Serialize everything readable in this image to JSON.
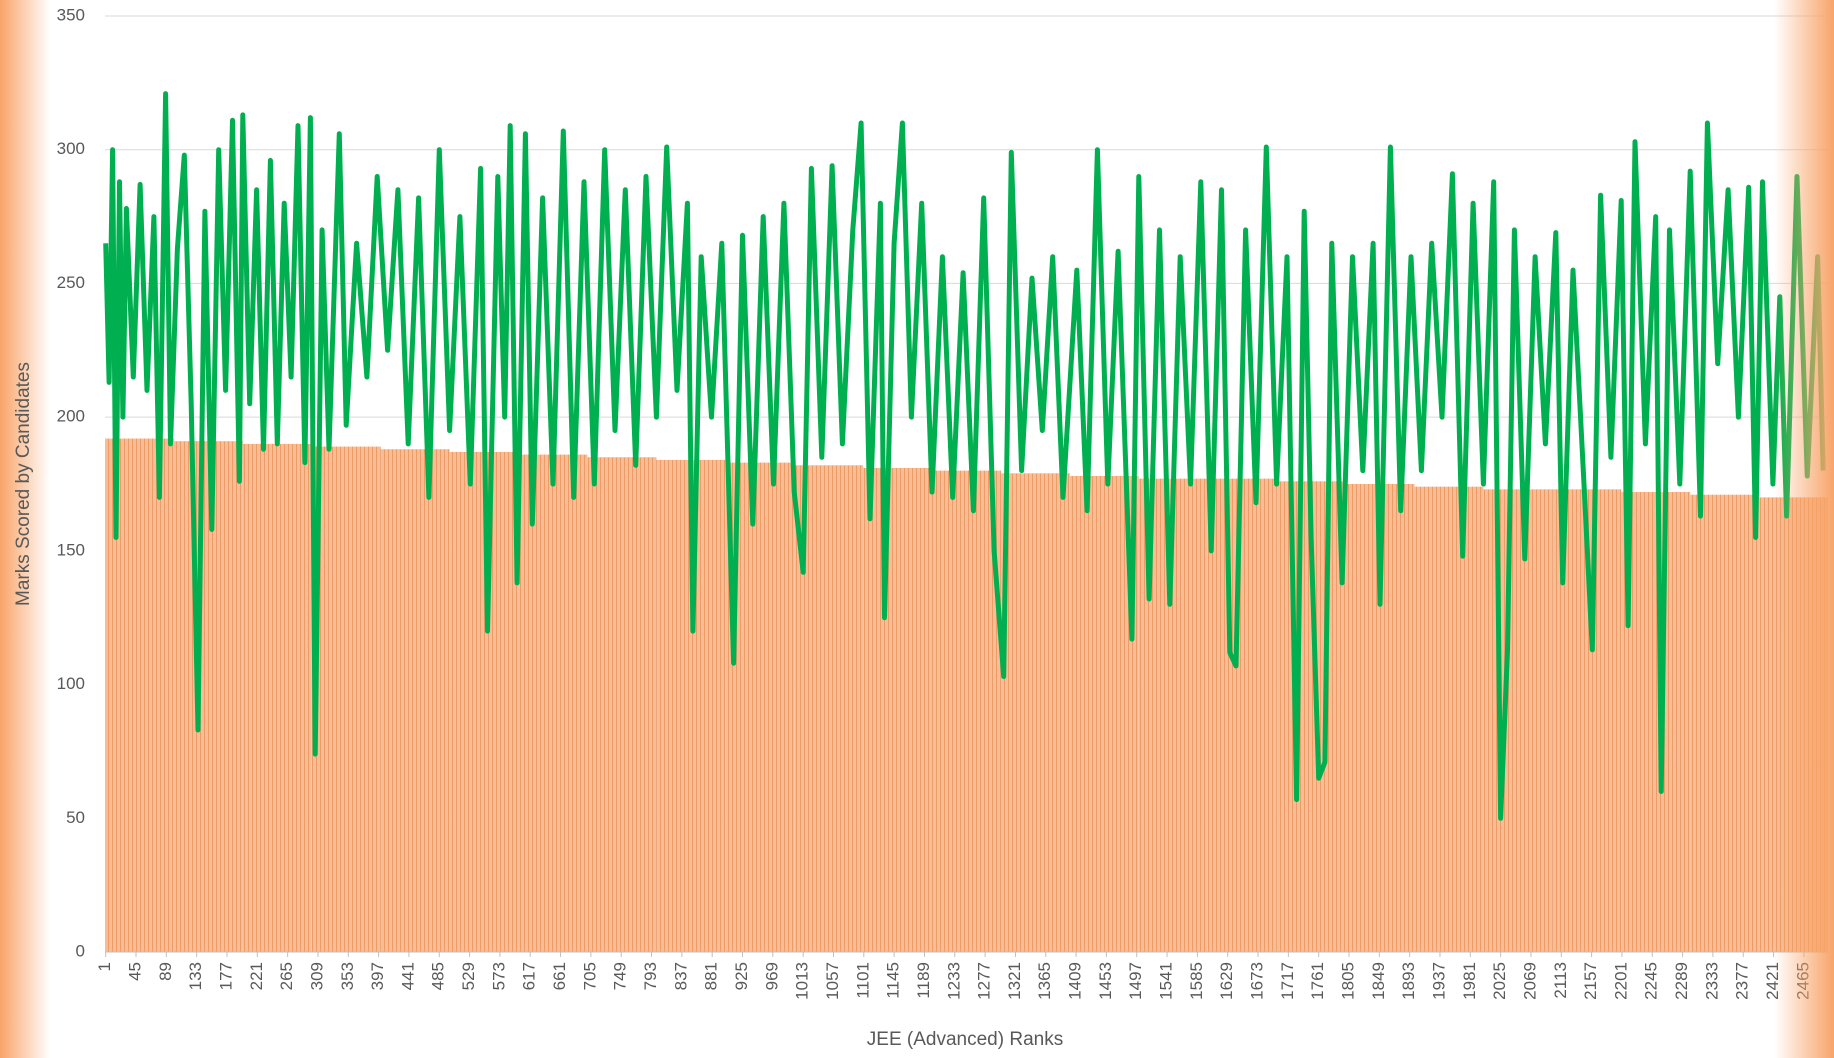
{
  "chart_data": {
    "type": "bar-line",
    "xlabel": "JEE (Advanced) Ranks",
    "ylabel": "Marks Scored by  Candidates",
    "xlim": [
      0,
      2500
    ],
    "ylim": [
      0,
      350
    ],
    "yticks": [
      0,
      50,
      100,
      150,
      200,
      250,
      300,
      350
    ],
    "xticks": [
      1,
      45,
      89,
      133,
      177,
      221,
      265,
      309,
      353,
      397,
      441,
      485,
      529,
      573,
      617,
      661,
      705,
      749,
      793,
      837,
      881,
      925,
      969,
      1013,
      1057,
      1101,
      1145,
      1189,
      1233,
      1277,
      1321,
      1365,
      1409,
      1453,
      1497,
      1541,
      1585,
      1629,
      1673,
      1717,
      1761,
      1805,
      1849,
      1893,
      1937,
      1981,
      2025,
      2069,
      2113,
      2157,
      2201,
      2245,
      2289,
      2333,
      2377,
      2421,
      2465
    ],
    "grid": true,
    "series": [
      {
        "type": "bar",
        "color": "#f4b183",
        "x": [
          0,
          100,
          200,
          300,
          400,
          500,
          600,
          700,
          800,
          900,
          1000,
          1100,
          1200,
          1300,
          1400,
          1500,
          1600,
          1700,
          1800,
          1900,
          2000,
          2100,
          2200,
          2300,
          2400
        ],
        "values": [
          192,
          191,
          190,
          189,
          188,
          187,
          186,
          185,
          184,
          183,
          182,
          181,
          180,
          179,
          178,
          177,
          177,
          176,
          175,
          174,
          173,
          173,
          172,
          171,
          170
        ]
      },
      {
        "type": "line",
        "color": "#00b050",
        "x": [
          1,
          6,
          11,
          16,
          21,
          26,
          31,
          41,
          51,
          61,
          71,
          79,
          88,
          95,
          105,
          115,
          125,
          135,
          145,
          155,
          165,
          175,
          185,
          195,
          200,
          210,
          220,
          230,
          240,
          250,
          260,
          270,
          280,
          290,
          298,
          305,
          315,
          325,
          340,
          350,
          365,
          380,
          395,
          410,
          425,
          440,
          455,
          470,
          485,
          500,
          515,
          530,
          545,
          555,
          570,
          580,
          588,
          598,
          610,
          620,
          635,
          650,
          665,
          680,
          695,
          710,
          725,
          740,
          755,
          770,
          785,
          800,
          815,
          830,
          845,
          853,
          865,
          880,
          895,
          912,
          925,
          940,
          955,
          970,
          985,
          1000,
          1013,
          1025,
          1040,
          1055,
          1070,
          1085,
          1097,
          1110,
          1125,
          1131,
          1145,
          1157,
          1170,
          1185,
          1200,
          1215,
          1230,
          1245,
          1260,
          1275,
          1290,
          1304,
          1315,
          1330,
          1345,
          1360,
          1375,
          1390,
          1410,
          1425,
          1440,
          1455,
          1470,
          1490,
          1500,
          1515,
          1530,
          1545,
          1560,
          1575,
          1590,
          1605,
          1620,
          1632,
          1641,
          1655,
          1670,
          1685,
          1700,
          1715,
          1729,
          1740,
          1750,
          1761,
          1770,
          1780,
          1795,
          1810,
          1825,
          1840,
          1850,
          1865,
          1880,
          1895,
          1910,
          1925,
          1940,
          1955,
          1970,
          1985,
          2000,
          2015,
          2025,
          2035,
          2045,
          2060,
          2075,
          2090,
          2105,
          2115,
          2130,
          2145,
          2158,
          2170,
          2185,
          2200,
          2210,
          2220,
          2235,
          2250,
          2258,
          2270,
          2285,
          2300,
          2315,
          2325,
          2340,
          2355,
          2370,
          2385,
          2395,
          2405,
          2420,
          2430,
          2440,
          2455,
          2470,
          2485,
          2493
        ],
        "values": [
          265,
          213,
          300,
          155,
          288,
          200,
          278,
          215,
          287,
          210,
          275,
          170,
          321,
          190,
          263,
          298,
          205,
          83,
          277,
          158,
          300,
          210,
          311,
          176,
          313,
          205,
          285,
          188,
          296,
          190,
          280,
          215,
          309,
          183,
          312,
          74,
          270,
          188,
          306,
          197,
          265,
          215,
          290,
          225,
          285,
          190,
          282,
          170,
          300,
          195,
          275,
          175,
          293,
          120,
          290,
          200,
          309,
          138,
          306,
          160,
          282,
          175,
          307,
          170,
          288,
          175,
          300,
          195,
          285,
          182,
          290,
          200,
          301,
          210,
          280,
          120,
          260,
          200,
          265,
          108,
          268,
          160,
          275,
          175,
          280,
          172,
          142,
          293,
          185,
          294,
          190,
          270,
          310,
          162,
          280,
          125,
          265,
          310,
          200,
          280,
          172,
          260,
          170,
          254,
          165,
          282,
          150,
          103,
          299,
          180,
          252,
          195,
          260,
          170,
          255,
          165,
          300,
          175,
          262,
          117,
          290,
          132,
          270,
          130,
          260,
          175,
          288,
          150,
          285,
          112,
          107,
          270,
          168,
          301,
          175,
          260,
          57,
          277,
          155,
          65,
          71,
          265,
          138,
          260,
          180,
          265,
          130,
          301,
          165,
          260,
          180,
          265,
          200,
          291,
          148,
          280,
          175,
          288,
          50,
          113,
          270,
          147,
          260,
          190,
          269,
          138,
          255,
          180,
          113,
          283,
          185,
          281,
          122,
          303,
          190,
          275,
          60,
          270,
          175,
          292,
          163,
          310,
          220,
          285,
          200,
          286,
          155,
          288,
          175,
          245,
          163,
          290,
          178,
          260,
          180
        ]
      }
    ]
  }
}
